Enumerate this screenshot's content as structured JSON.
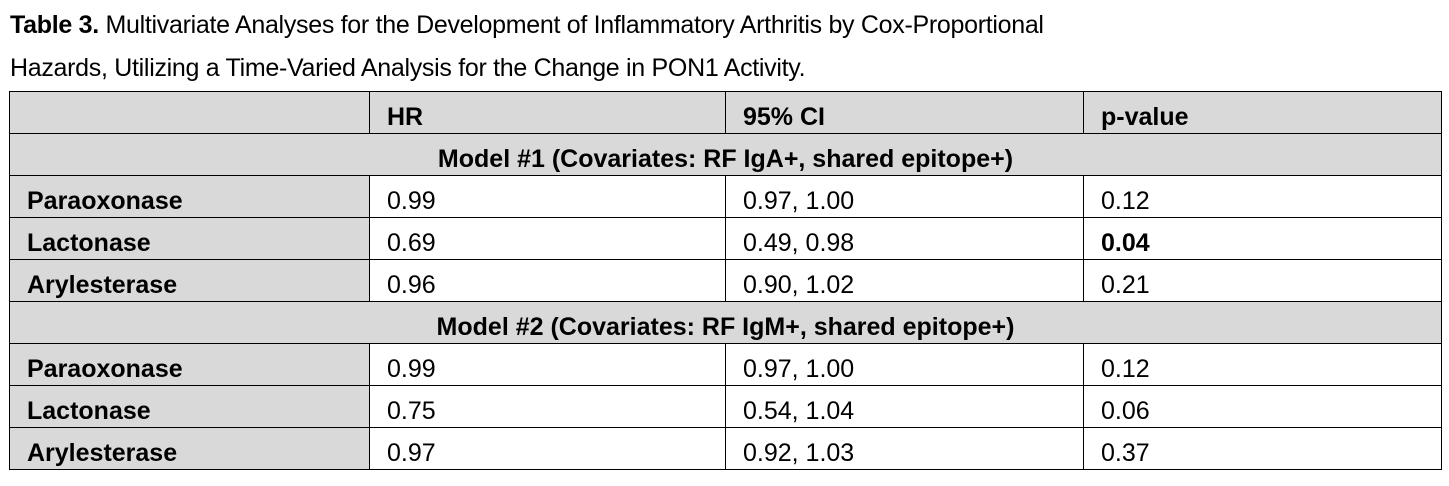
{
  "caption": {
    "label": "Table 3.",
    "line1": " Multivariate Analyses for the Development of Inflammatory Arthritis by Cox-Proportional",
    "line2": "Hazards, Utilizing a Time-Varied Analysis for the Change in PON1 Activity."
  },
  "columns": [
    "",
    "HR",
    "95% CI",
    "p-value"
  ],
  "models": [
    {
      "title": "Model #1 (Covariates: RF IgA+, shared epitope+)",
      "rows": [
        {
          "name": "Paraoxonase",
          "hr": "0.99",
          "ci": "0.97, 1.00",
          "p": "0.12",
          "p_bold": false
        },
        {
          "name": "Lactonase",
          "hr": "0.69",
          "ci": "0.49, 0.98",
          "p": "0.04",
          "p_bold": true
        },
        {
          "name": "Arylesterase",
          "hr": "0.96",
          "ci": "0.90, 1.02",
          "p": "0.21",
          "p_bold": false
        }
      ]
    },
    {
      "title": "Model #2 (Covariates: RF IgM+, shared epitope+)",
      "rows": [
        {
          "name": "Paraoxonase",
          "hr": "0.99",
          "ci": "0.97, 1.00",
          "p": "0.12",
          "p_bold": false
        },
        {
          "name": "Lactonase",
          "hr": "0.75",
          "ci": "0.54, 1.04",
          "p": "0.06",
          "p_bold": false
        },
        {
          "name": "Arylesterase",
          "hr": "0.97",
          "ci": "0.92, 1.03",
          "p": "0.37",
          "p_bold": false
        }
      ]
    }
  ],
  "colors": {
    "header_fill": "#d9d9d9",
    "border": "#000000"
  }
}
